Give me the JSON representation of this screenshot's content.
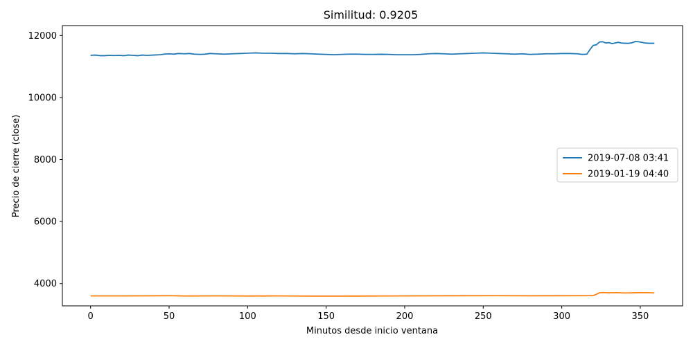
{
  "chart_data": {
    "type": "line",
    "title": "Similitud: 0.9205",
    "xlabel": "Minutos desde inicio ventana",
    "ylabel": "Precio de cierre (close)",
    "xlim": [
      -17.95,
      376.95
    ],
    "ylim": [
      3280,
      12320
    ],
    "xticks": [
      0,
      50,
      100,
      150,
      200,
      250,
      300,
      350
    ],
    "xtick_labels": [
      "0",
      "50",
      "100",
      "150",
      "200",
      "250",
      "300",
      "350"
    ],
    "yticks": [
      4000,
      6000,
      8000,
      10000,
      12000
    ],
    "ytick_labels": [
      "4000",
      "6000",
      "8000",
      "10000",
      "12000"
    ],
    "grid": false,
    "legend_position": "center-right",
    "series": [
      {
        "name": "2019-07-08 03:41",
        "color": "#1f77b4",
        "points": [
          [
            0,
            11360
          ],
          [
            3,
            11370
          ],
          [
            6,
            11350
          ],
          [
            9,
            11350
          ],
          [
            12,
            11360
          ],
          [
            15,
            11355
          ],
          [
            18,
            11360
          ],
          [
            21,
            11350
          ],
          [
            24,
            11370
          ],
          [
            27,
            11360
          ],
          [
            30,
            11350
          ],
          [
            33,
            11370
          ],
          [
            36,
            11360
          ],
          [
            40,
            11370
          ],
          [
            44,
            11380
          ],
          [
            47,
            11400
          ],
          [
            50,
            11410
          ],
          [
            53,
            11400
          ],
          [
            56,
            11420
          ],
          [
            60,
            11410
          ],
          [
            63,
            11420
          ],
          [
            66,
            11400
          ],
          [
            70,
            11390
          ],
          [
            73,
            11400
          ],
          [
            76,
            11420
          ],
          [
            80,
            11410
          ],
          [
            85,
            11400
          ],
          [
            90,
            11410
          ],
          [
            95,
            11420
          ],
          [
            100,
            11430
          ],
          [
            105,
            11440
          ],
          [
            110,
            11430
          ],
          [
            115,
            11430
          ],
          [
            120,
            11420
          ],
          [
            125,
            11420
          ],
          [
            130,
            11410
          ],
          [
            135,
            11420
          ],
          [
            140,
            11410
          ],
          [
            145,
            11400
          ],
          [
            150,
            11390
          ],
          [
            155,
            11380
          ],
          [
            160,
            11390
          ],
          [
            165,
            11400
          ],
          [
            170,
            11400
          ],
          [
            175,
            11390
          ],
          [
            180,
            11390
          ],
          [
            185,
            11395
          ],
          [
            190,
            11390
          ],
          [
            195,
            11380
          ],
          [
            200,
            11380
          ],
          [
            205,
            11380
          ],
          [
            210,
            11390
          ],
          [
            215,
            11410
          ],
          [
            220,
            11420
          ],
          [
            225,
            11410
          ],
          [
            230,
            11400
          ],
          [
            235,
            11410
          ],
          [
            240,
            11420
          ],
          [
            245,
            11430
          ],
          [
            250,
            11440
          ],
          [
            255,
            11430
          ],
          [
            260,
            11420
          ],
          [
            265,
            11410
          ],
          [
            270,
            11400
          ],
          [
            275,
            11410
          ],
          [
            280,
            11390
          ],
          [
            285,
            11400
          ],
          [
            290,
            11410
          ],
          [
            295,
            11410
          ],
          [
            300,
            11420
          ],
          [
            305,
            11420
          ],
          [
            310,
            11410
          ],
          [
            313,
            11390
          ],
          [
            316,
            11400
          ],
          [
            318,
            11550
          ],
          [
            320,
            11680
          ],
          [
            322,
            11700
          ],
          [
            324,
            11790
          ],
          [
            326,
            11800
          ],
          [
            328,
            11760
          ],
          [
            330,
            11770
          ],
          [
            332,
            11740
          ],
          [
            334,
            11760
          ],
          [
            336,
            11780
          ],
          [
            338,
            11760
          ],
          [
            340,
            11750
          ],
          [
            343,
            11750
          ],
          [
            345,
            11770
          ],
          [
            347,
            11810
          ],
          [
            350,
            11790
          ],
          [
            353,
            11760
          ],
          [
            356,
            11750
          ],
          [
            359,
            11750
          ]
        ]
      },
      {
        "name": "2019-01-19 04:40",
        "color": "#ff7f0e",
        "points": [
          [
            0,
            3600
          ],
          [
            20,
            3600
          ],
          [
            40,
            3605
          ],
          [
            50,
            3610
          ],
          [
            60,
            3598
          ],
          [
            80,
            3602
          ],
          [
            100,
            3598
          ],
          [
            120,
            3600
          ],
          [
            140,
            3595
          ],
          [
            160,
            3596
          ],
          [
            180,
            3598
          ],
          [
            200,
            3600
          ],
          [
            220,
            3605
          ],
          [
            240,
            3608
          ],
          [
            260,
            3610
          ],
          [
            280,
            3605
          ],
          [
            300,
            3608
          ],
          [
            315,
            3610
          ],
          [
            320,
            3610
          ],
          [
            322,
            3650
          ],
          [
            324,
            3700
          ],
          [
            326,
            3710
          ],
          [
            330,
            3700
          ],
          [
            335,
            3705
          ],
          [
            340,
            3695
          ],
          [
            345,
            3700
          ],
          [
            350,
            3705
          ],
          [
            355,
            3705
          ],
          [
            359,
            3695
          ]
        ]
      }
    ]
  }
}
